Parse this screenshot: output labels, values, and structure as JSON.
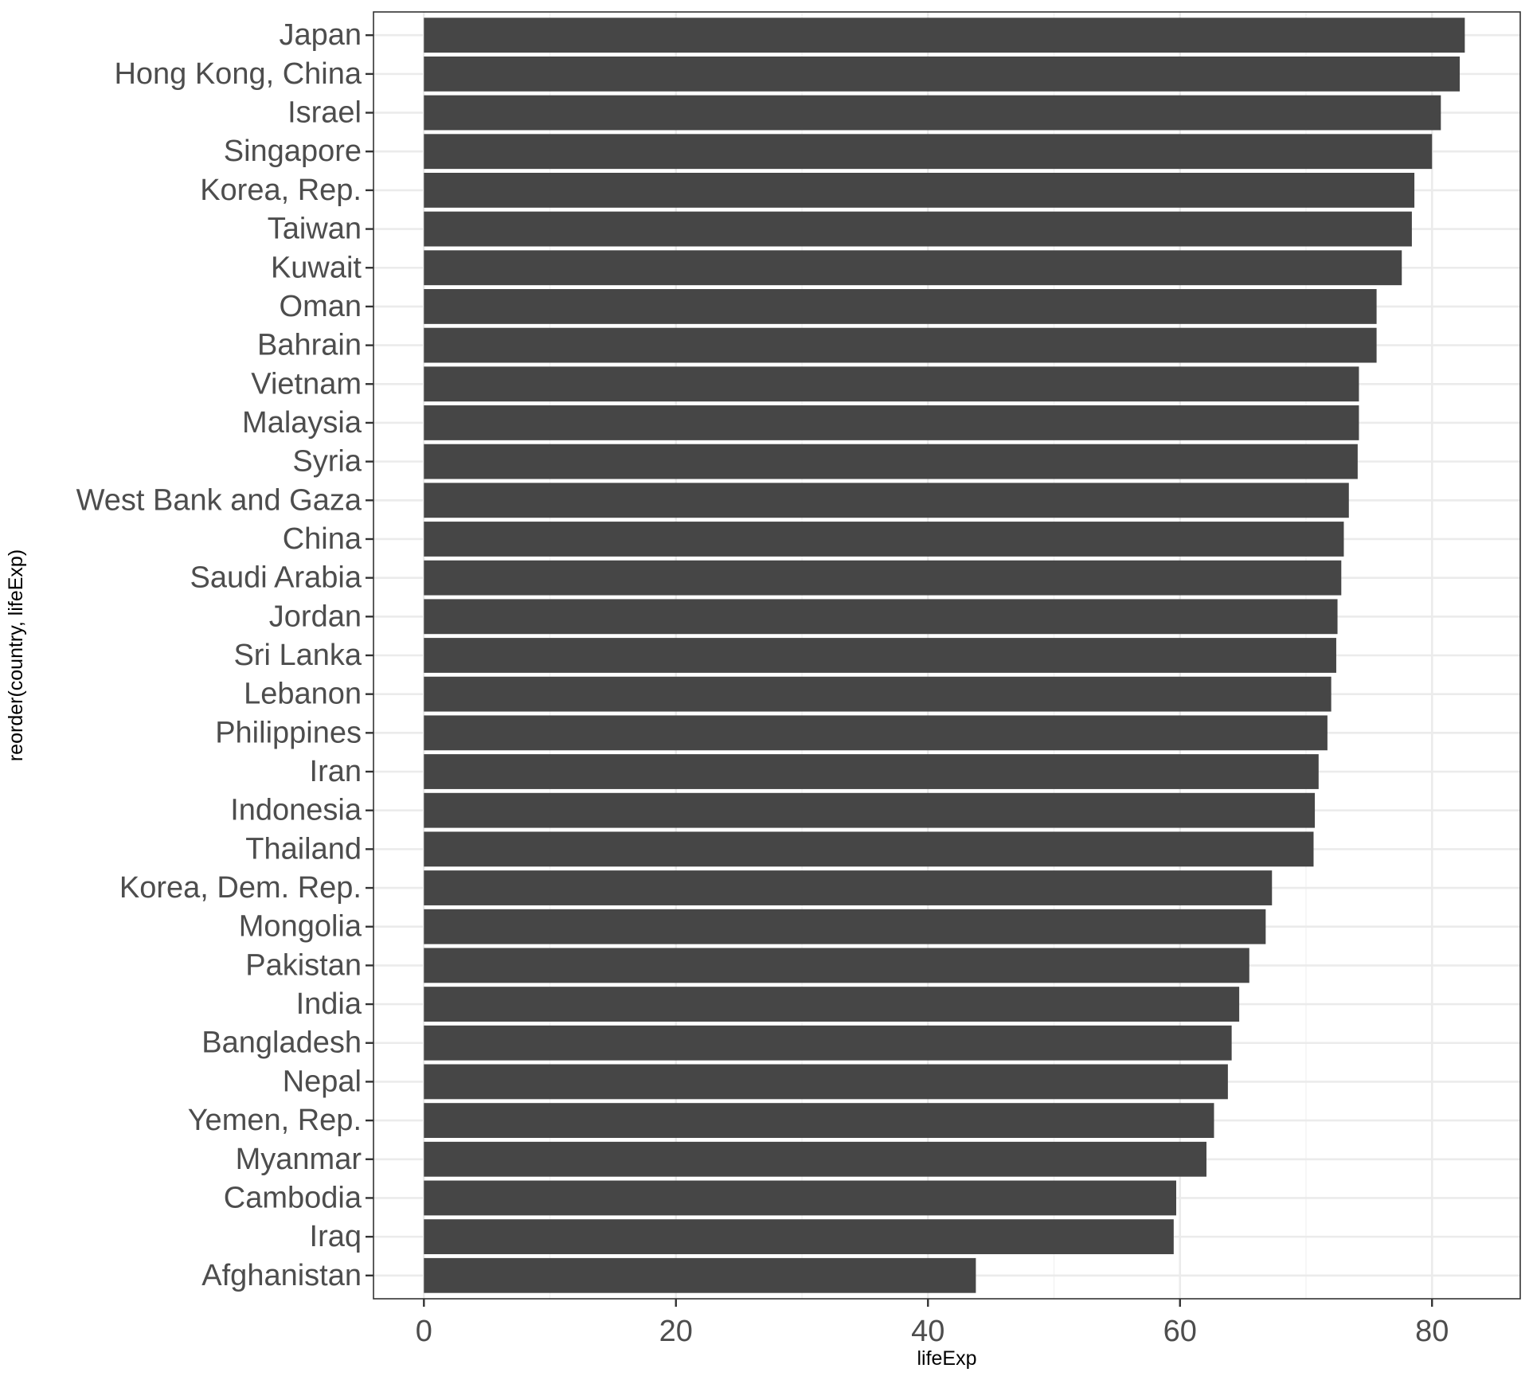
{
  "chart_data": {
    "type": "bar",
    "orientation": "horizontal",
    "title": "",
    "xlabel": "lifeExp",
    "ylabel": "reorder(country, lifeExp)",
    "xlim": [
      -4,
      87
    ],
    "xticks": [
      0,
      20,
      40,
      60,
      80
    ],
    "grid": true,
    "legend": "none",
    "bar_color": "#464646",
    "categories": [
      "Japan",
      "Hong Kong, China",
      "Israel",
      "Singapore",
      "Korea, Rep.",
      "Taiwan",
      "Kuwait",
      "Oman",
      "Bahrain",
      "Vietnam",
      "Malaysia",
      "Syria",
      "West Bank and Gaza",
      "China",
      "Saudi Arabia",
      "Jordan",
      "Sri Lanka",
      "Lebanon",
      "Philippines",
      "Iran",
      "Indonesia",
      "Thailand",
      "Korea, Dem. Rep.",
      "Mongolia",
      "Pakistan",
      "India",
      "Bangladesh",
      "Nepal",
      "Yemen, Rep.",
      "Myanmar",
      "Cambodia",
      "Iraq",
      "Afghanistan"
    ],
    "values": [
      82.6,
      82.2,
      80.7,
      80.0,
      78.6,
      78.4,
      77.6,
      75.6,
      75.6,
      74.2,
      74.2,
      74.1,
      73.4,
      73.0,
      72.8,
      72.5,
      72.4,
      72.0,
      71.7,
      71.0,
      70.7,
      70.6,
      67.3,
      66.8,
      65.5,
      64.7,
      64.1,
      63.8,
      62.7,
      62.1,
      59.7,
      59.5,
      43.8
    ]
  }
}
